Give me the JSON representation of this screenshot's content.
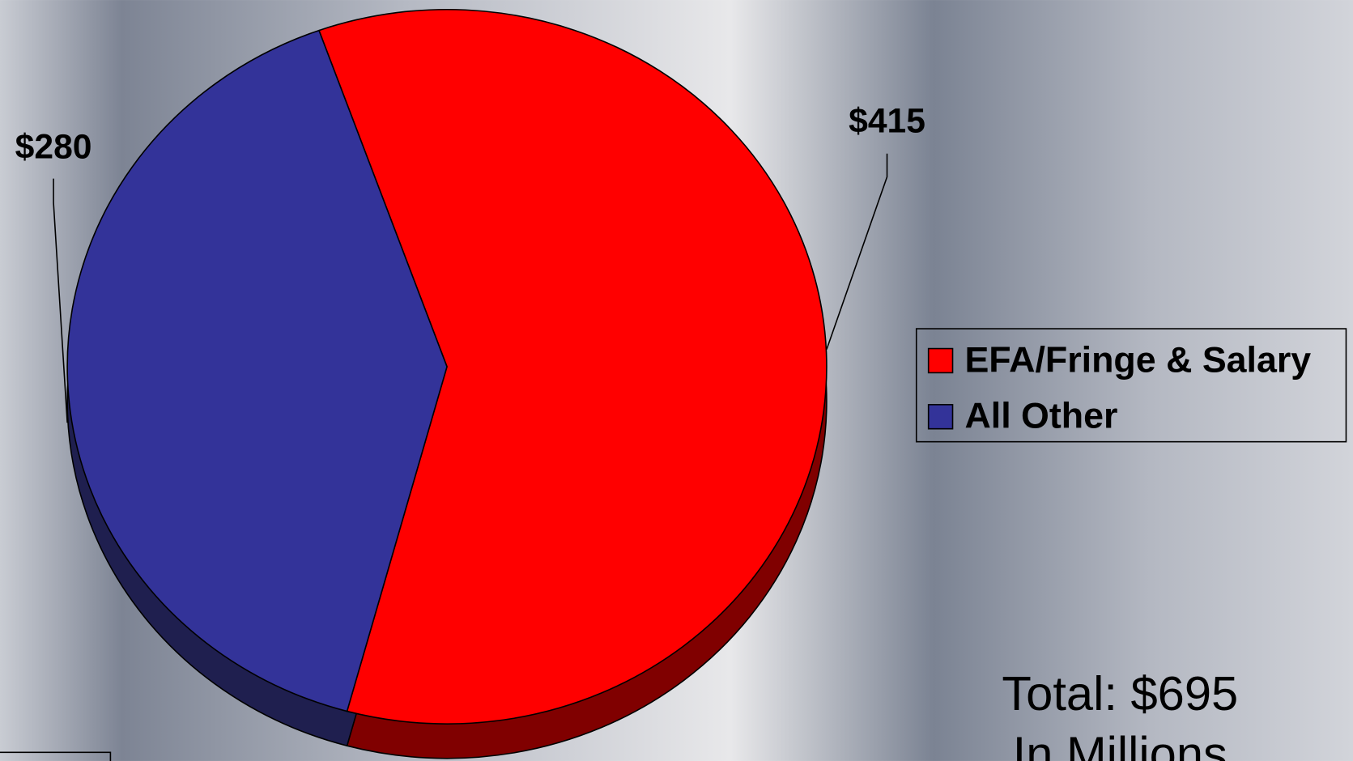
{
  "chart_data": {
    "type": "pie",
    "categories": [
      "EFA/Fringe & Salary",
      "All Other"
    ],
    "values": [
      415,
      280
    ],
    "value_labels": [
      "$415",
      "$280"
    ],
    "colors": [
      "#ff0000",
      "#333399"
    ],
    "shadow_colors": [
      "#800000",
      "#1f1f4f"
    ],
    "legend": "right",
    "annotations": [
      "Total: $695",
      "In Millions"
    ]
  }
}
